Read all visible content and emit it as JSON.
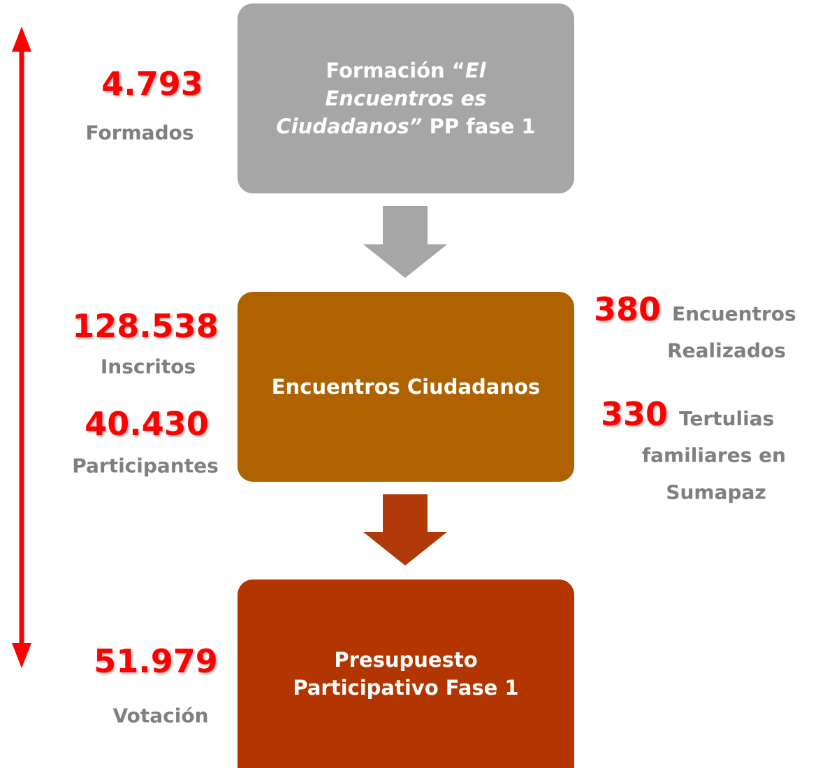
{
  "boxes": [
    {
      "color": "#a6a6a6",
      "lines": [
        [
          {
            "text": "Formación “"
          },
          {
            "text": "El",
            "italic": true
          }
        ],
        [
          {
            "text": "Encuentros es",
            "italic": true
          }
        ],
        [
          {
            "text": "Ciudadanos”",
            "italic": true
          },
          {
            "text": " PP fase 1"
          }
        ]
      ]
    },
    {
      "color": "#ae6200",
      "lines": [
        [
          {
            "text": "Encuentros Ciudadanos"
          }
        ]
      ]
    },
    {
      "color": "#b33600",
      "lines": [
        [
          {
            "text": "Presupuesto"
          }
        ],
        [
          {
            "text": "Participativo Fase 1"
          }
        ]
      ]
    }
  ],
  "arrows": [
    {
      "color": "#a6a6a6"
    },
    {
      "color": "#b03a0a"
    }
  ],
  "left_stats": [
    {
      "number": "4.793",
      "label": "Formados"
    },
    {
      "number": "128.538",
      "label": "Inscritos"
    },
    {
      "number": "40.430",
      "label": "Participantes"
    },
    {
      "number": "51.979",
      "label": "Votación"
    }
  ],
  "right_stats": [
    {
      "number": "380",
      "lines": [
        "Encuentros",
        "Realizados"
      ]
    },
    {
      "number": "330",
      "lines": [
        "Tertulias",
        "familiares en",
        "Sumapaz"
      ]
    }
  ]
}
